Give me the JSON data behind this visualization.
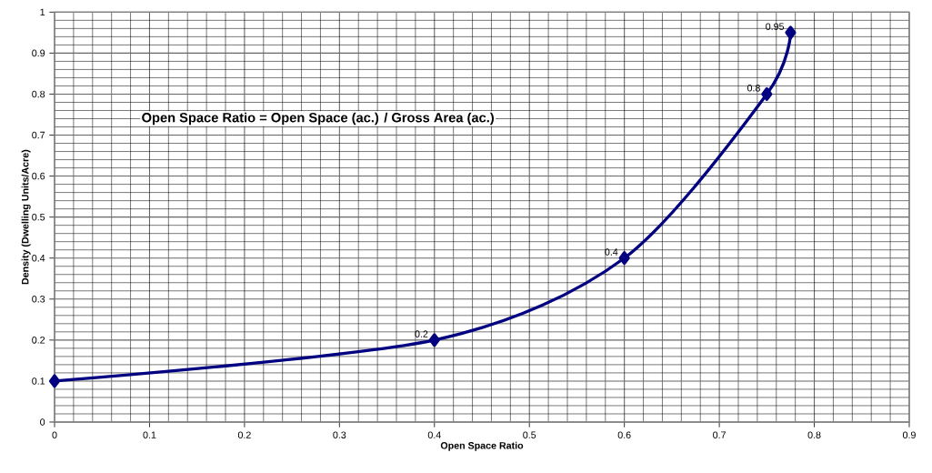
{
  "chart_data": {
    "type": "line",
    "xlabel": "Open Space Ratio",
    "ylabel": "Density (Dwelling Units/Acre)",
    "annotations": [
      "Open Space Ratio = Open Space (ac.) / Gross Area (ac.)"
    ],
    "x": [
      0,
      0.4,
      0.6,
      0.75,
      0.775
    ],
    "series": [
      {
        "color": "#000080",
        "values": [
          0.1,
          0.2,
          0.4,
          0.8,
          0.95
        ],
        "value_labels": [
          null,
          "0.2",
          "0.4",
          "0.8",
          "0.95"
        ]
      }
    ],
    "xlim": [
      0,
      0.9
    ],
    "ylim": [
      0,
      1
    ],
    "xticks": [
      0,
      0.1,
      0.2,
      0.3,
      0.4,
      0.5,
      0.6,
      0.7,
      0.8,
      0.9
    ],
    "yticks": [
      0,
      0.1,
      0.2,
      0.3,
      0.4,
      0.5,
      0.6,
      0.7,
      0.8,
      0.9,
      1
    ],
    "grid": true,
    "marker": "diamond",
    "line_style": "solid"
  }
}
